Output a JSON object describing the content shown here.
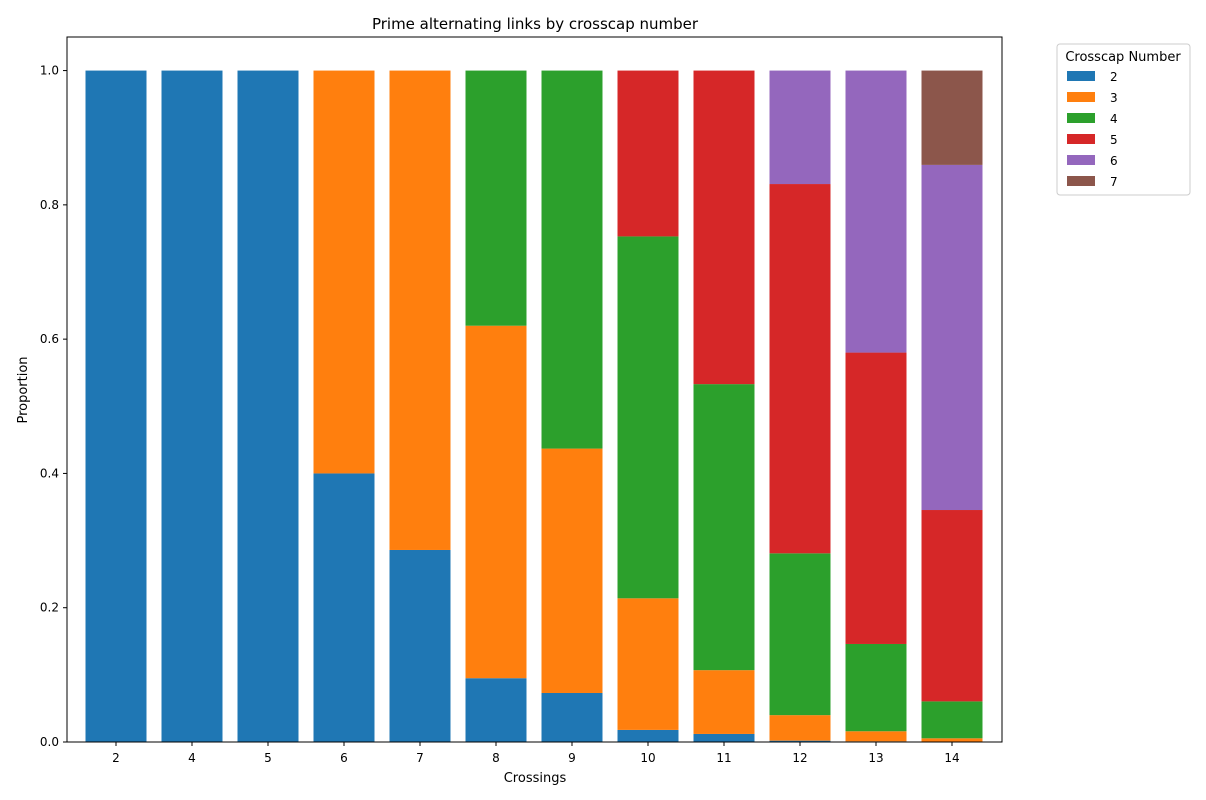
{
  "chart_data": {
    "type": "bar",
    "stacked": true,
    "title": "Prime alternating links by crosscap number",
    "xlabel": "Crossings",
    "ylabel": "Proportion",
    "ylim": [
      0,
      1.05
    ],
    "yticks": [
      "0.0",
      "0.2",
      "0.4",
      "0.6",
      "0.8",
      "1.0"
    ],
    "categories": [
      "2",
      "4",
      "5",
      "6",
      "7",
      "8",
      "9",
      "10",
      "11",
      "12",
      "13",
      "14"
    ],
    "legend": {
      "title": "Crosscap Number",
      "placement": "outside-top-right"
    },
    "series": [
      {
        "name": "2",
        "color": "#1f77b4",
        "values": [
          1.0,
          1.0,
          1.0,
          0.4,
          0.286,
          0.095,
          0.073,
          0.018,
          0.012,
          0.002,
          0.001,
          0.0005
        ]
      },
      {
        "name": "3",
        "color": "#ff7f0e",
        "values": [
          0.0,
          0.0,
          0.0,
          0.6,
          0.714,
          0.525,
          0.364,
          0.196,
          0.095,
          0.038,
          0.015,
          0.005
        ]
      },
      {
        "name": "4",
        "color": "#2ca02c",
        "values": [
          0.0,
          0.0,
          0.0,
          0.0,
          0.0,
          0.38,
          0.563,
          0.539,
          0.426,
          0.241,
          0.13,
          0.055
        ]
      },
      {
        "name": "5",
        "color": "#d62728",
        "values": [
          0.0,
          0.0,
          0.0,
          0.0,
          0.0,
          0.0,
          0.0,
          0.247,
          0.467,
          0.55,
          0.434,
          0.285
        ]
      },
      {
        "name": "6",
        "color": "#9467bd",
        "values": [
          0.0,
          0.0,
          0.0,
          0.0,
          0.0,
          0.0,
          0.0,
          0.0,
          0.0,
          0.169,
          0.42,
          0.514
        ]
      },
      {
        "name": "7",
        "color": "#8c564b",
        "values": [
          0.0,
          0.0,
          0.0,
          0.0,
          0.0,
          0.0,
          0.0,
          0.0,
          0.0,
          0.0,
          0.0,
          0.1405
        ]
      }
    ]
  }
}
